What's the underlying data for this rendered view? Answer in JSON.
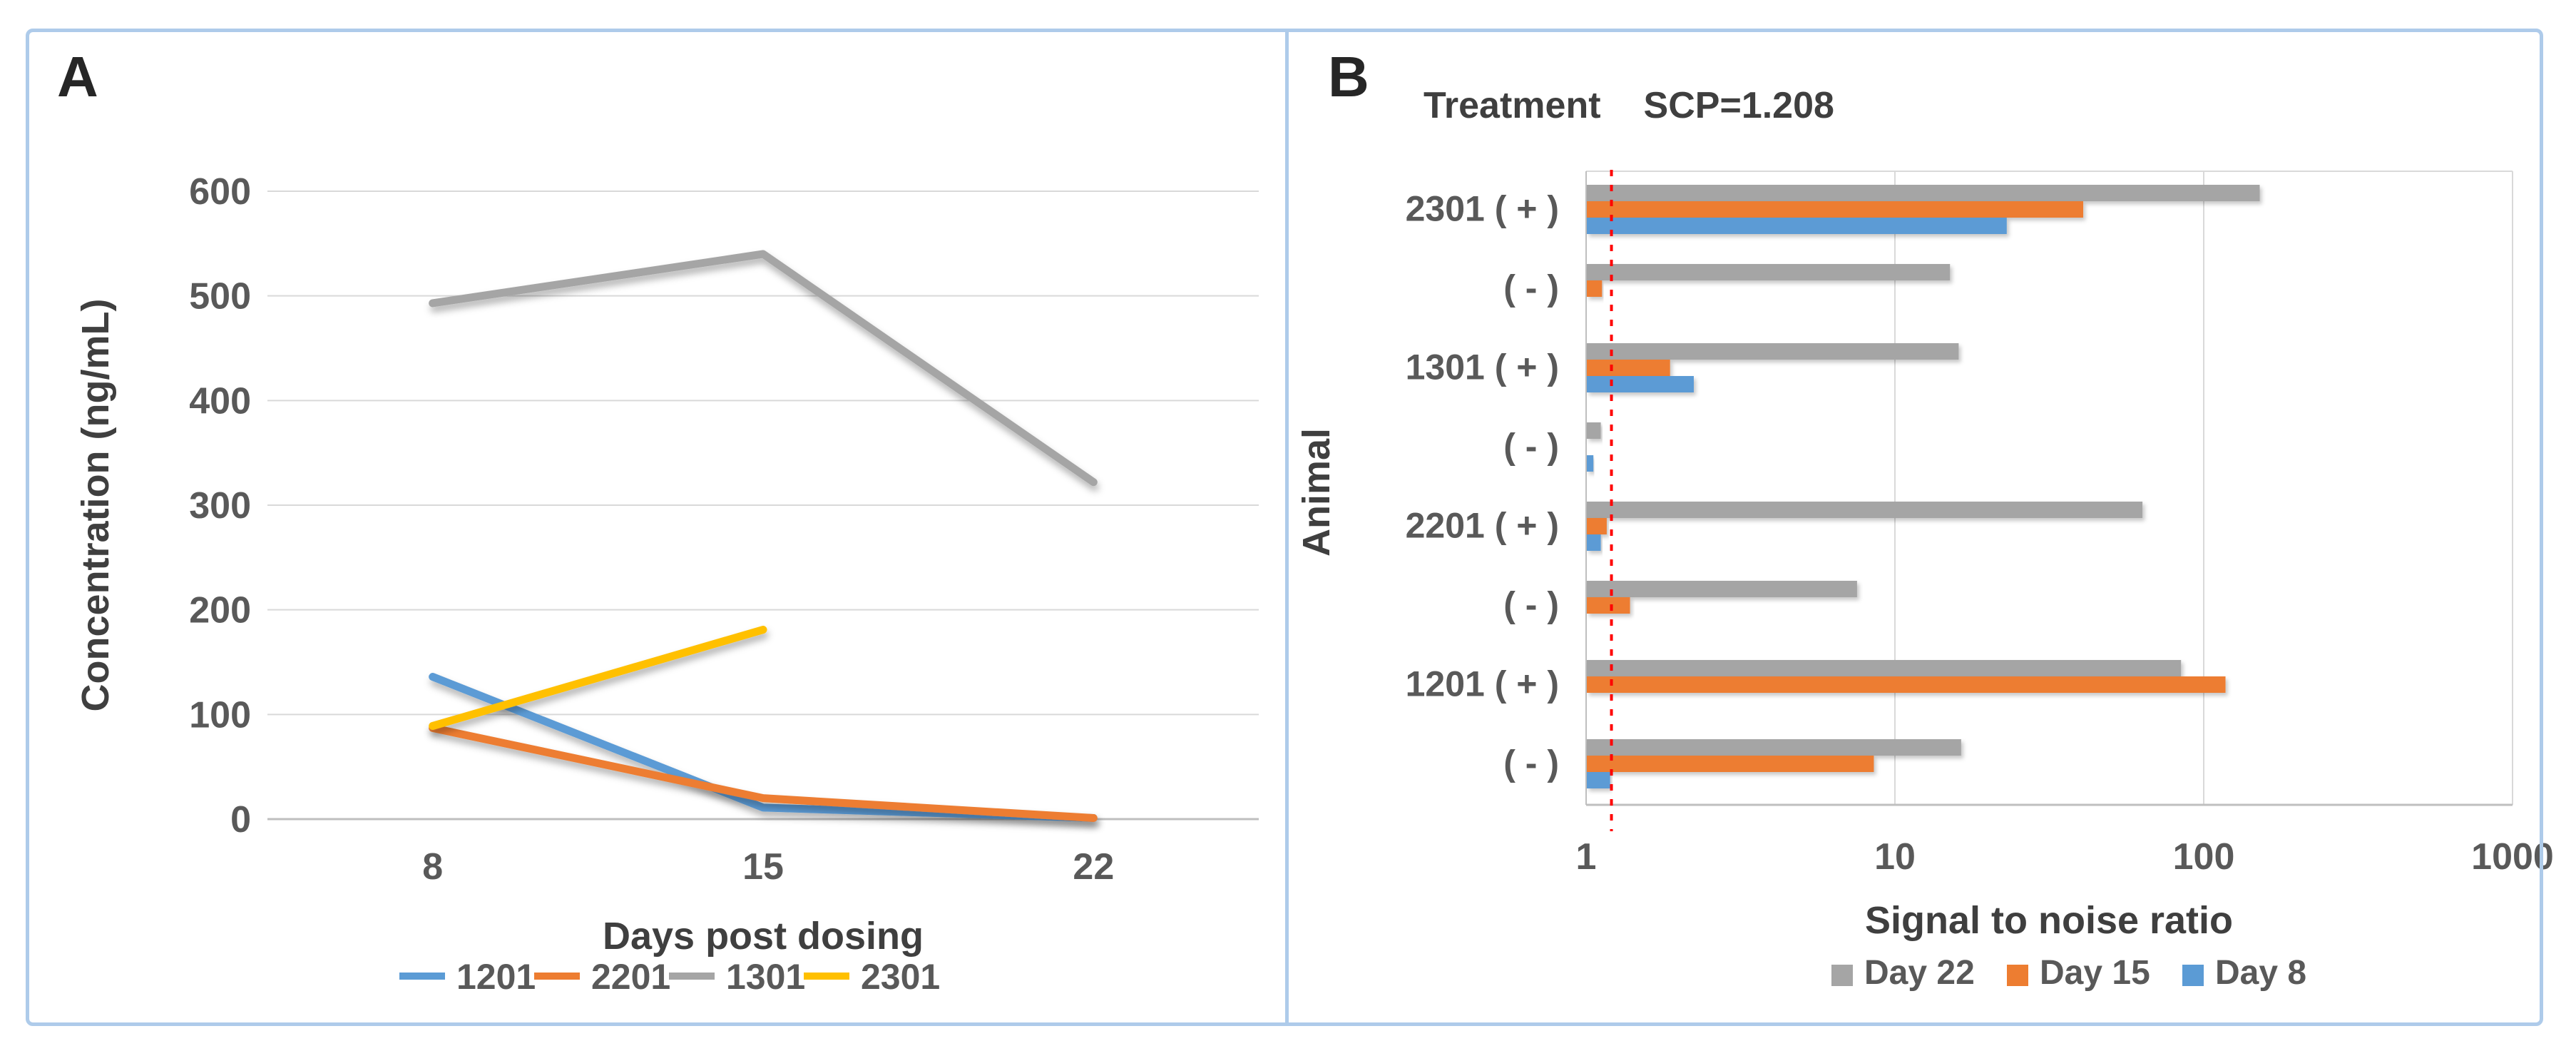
{
  "figure": {
    "panel_a_label": "A",
    "panel_b_label": "B",
    "border_color": "#aecbea"
  },
  "chart_data": [
    {
      "type": "line",
      "panel": "A",
      "title": "",
      "xlabel": "Days post dosing",
      "ylabel": "Concentration (ng/mL)",
      "categories": [
        "8",
        "15",
        "22"
      ],
      "y_ticks": [
        0,
        100,
        200,
        300,
        400,
        500,
        600
      ],
      "ylim": [
        0,
        600
      ],
      "grid": "horizontal",
      "legend_position": "bottom",
      "series": [
        {
          "name": "1201",
          "color": "#5B9BD5",
          "values": [
            136,
            11,
            1
          ]
        },
        {
          "name": "2201",
          "color": "#ED7D31",
          "values": [
            87,
            20,
            1
          ]
        },
        {
          "name": "1301",
          "color": "#A5A5A5",
          "values": [
            493,
            540,
            322
          ]
        },
        {
          "name": "2301",
          "color": "#FFC000",
          "values": [
            89,
            181,
            null
          ]
        }
      ]
    },
    {
      "type": "bar",
      "panel": "B",
      "orientation": "horizontal",
      "title_left": "Treatment",
      "title_right": "SCP=1.208",
      "xlabel": "Signal to noise ratio",
      "ylabel": "Animal",
      "xscale": "log",
      "x_ticks": [
        1,
        10,
        100,
        1000
      ],
      "xlim": [
        1,
        1000
      ],
      "grid": "vertical",
      "legend_position": "bottom",
      "reference_line": {
        "label": "SCP",
        "value": 1.208,
        "color": "#FF0000",
        "style": "dotted"
      },
      "categories": [
        "2301 ( + )",
        "( - )",
        "1301 ( + )",
        "( - )",
        "2201 ( + )",
        "( - )",
        "1201 ( + )",
        "( - )"
      ],
      "series": [
        {
          "name": "Day 22",
          "color": "#A5A5A5",
          "values": [
            151,
            15,
            16,
            1.11,
            63,
            7.5,
            84,
            16.3
          ]
        },
        {
          "name": "Day 15",
          "color": "#ED7D31",
          "values": [
            40.5,
            1.12,
            1.86,
            null,
            1.16,
            1.38,
            117,
            8.5
          ]
        },
        {
          "name": "Day 8",
          "color": "#5B9BD5",
          "values": [
            22.9,
            null,
            2.22,
            1.05,
            1.11,
            null,
            null,
            1.19
          ]
        }
      ]
    }
  ],
  "styles": {
    "gridline_color": "#d9d9d9",
    "axis_line_color": "#bfbfbf",
    "tick_text_color": "#595959",
    "title_text_color": "#3f3f3f"
  }
}
